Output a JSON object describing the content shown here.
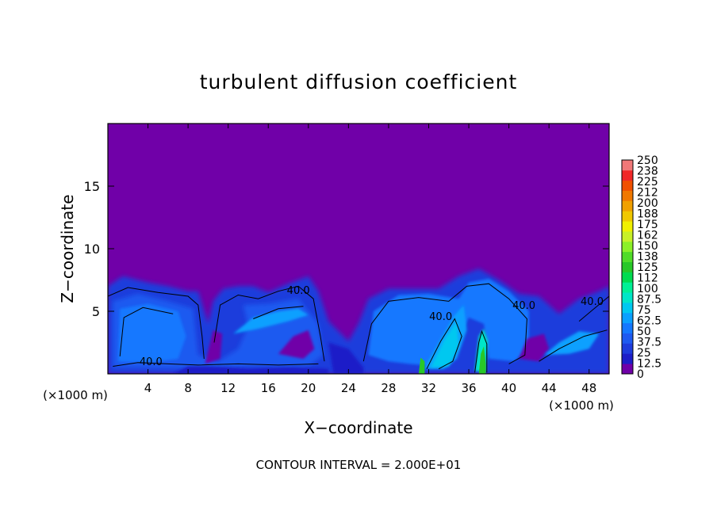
{
  "chart_data": {
    "type": "heatmap",
    "title": "turbulent diffusion coefficient",
    "xlabel": "X−coordinate",
    "ylabel": "Z−coordinate",
    "x_unit_left": "(×1000 m)",
    "x_unit_right": "(×1000 m)",
    "footnote": "CONTOUR INTERVAL = 2.000E+01",
    "xlim": [
      0,
      50
    ],
    "ylim": [
      0,
      20
    ],
    "x_ticks": [
      4,
      8,
      12,
      16,
      20,
      24,
      28,
      32,
      36,
      40,
      44,
      48
    ],
    "y_ticks": [
      5,
      10,
      15
    ],
    "colorbar": {
      "levels": [
        "0",
        "12.5",
        "25",
        "37.5",
        "50",
        "62.5",
        "75",
        "87.5",
        "100",
        "112",
        "125",
        "138",
        "150",
        "162",
        "175",
        "188",
        "200",
        "212",
        "225",
        "238",
        "250"
      ],
      "colors": [
        "#7000a8",
        "#1e1ec8",
        "#1e3cdc",
        "#1e5af0",
        "#1478ff",
        "#0aa0ff",
        "#00c8f0",
        "#00e6c8",
        "#00f096",
        "#00dc50",
        "#28c828",
        "#50dc28",
        "#8cf028",
        "#c8f028",
        "#f0f000",
        "#f0c800",
        "#f0a000",
        "#f07800",
        "#f05000",
        "#f02828",
        "#f07878"
      ]
    },
    "contour_labels": [
      {
        "text": "40.0",
        "x": 19,
        "z": 6.4
      },
      {
        "text": "40.0",
        "x": 33.2,
        "z": 4.3
      },
      {
        "text": "40.0",
        "x": 41.5,
        "z": 5.2
      },
      {
        "text": "40.0",
        "x": 48.3,
        "z": 5.5
      },
      {
        "text": "40.0",
        "x": 4.3,
        "z": 0.7
      }
    ]
  }
}
